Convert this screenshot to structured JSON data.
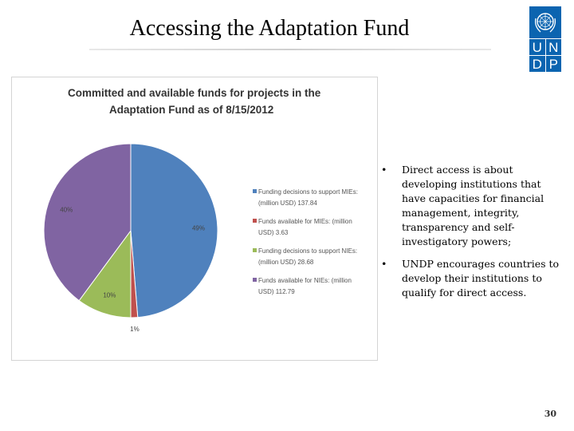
{
  "slide": {
    "title": "Accessing the Adaptation Fund",
    "page_number": "30"
  },
  "logo": {
    "letters": [
      "U",
      "N",
      "D",
      "P"
    ],
    "icon": "un-emblem-icon",
    "color": "#0b64b0"
  },
  "bullets": [
    "Direct access is about developing institutions that have capacities for financial management, integrity, transparency and self-investigatory powers;",
    "UNDP encourages countries to develop their institutions to qualify for direct access."
  ],
  "chart_data": {
    "type": "pie",
    "title_lines": [
      "Committed and available funds for projects in the",
      "Adaptation Fund as of 8/15/2012"
    ],
    "legend_position": "right",
    "slices": [
      {
        "legend_lines": [
          "Funding decisions to support MIEs:",
          "(million USD) 137.84"
        ],
        "value": 137.84,
        "label": "49%",
        "color": "#4f81bd"
      },
      {
        "legend_lines": [
          "Funds available for MIEs: (million",
          "USD) 3.63"
        ],
        "value": 3.63,
        "label": "1%",
        "color": "#c0504d"
      },
      {
        "legend_lines": [
          "Funding decisions to support NIEs:",
          "(million USD) 28.68"
        ],
        "value": 28.68,
        "label": "10%",
        "color": "#9bbb59"
      },
      {
        "legend_lines": [
          "Funds available for NIEs: (million",
          "USD) 112.79"
        ],
        "value": 112.79,
        "label": "40%",
        "color": "#8064a2"
      }
    ]
  }
}
